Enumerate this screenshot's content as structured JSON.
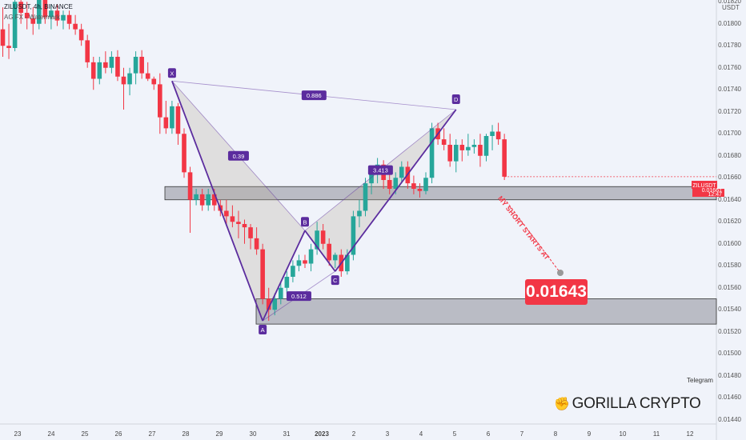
{
  "header": {
    "symbol": "ZILUSDT, 4h, BINANCE",
    "indicator": "AG FX - Watermark"
  },
  "price_axis": {
    "unit": "USDT",
    "labels": [
      "0.01820",
      "0.01800",
      "0.01780",
      "0.01760",
      "0.01740",
      "0.01720",
      "0.01700",
      "0.01680",
      "0.01660",
      "0.01640",
      "0.01620",
      "0.01600",
      "0.01580",
      "0.01560",
      "0.01540",
      "0.01520",
      "0.01500",
      "0.01480",
      "0.01460",
      "0.01440"
    ]
  },
  "price_badge": {
    "symbol": "ZILUSDT",
    "price": "0.01661",
    "countdown": "12:47"
  },
  "colors": {
    "up": "#26a69a",
    "down": "#f23645",
    "pattern": "#5b2c9e",
    "zone": "#9598a1",
    "background": "#f0f3fa"
  },
  "chart_data": {
    "type": "candlestick",
    "title": "ZILUSDT, 4h, BINANCE",
    "x_tick_labels": [
      "23",
      "24",
      "25",
      "26",
      "27",
      "28",
      "29",
      "30",
      "31",
      "2023",
      "2",
      "3",
      "4",
      "5",
      "6",
      "7",
      "8",
      "9",
      "10",
      "11",
      "12"
    ],
    "ylim": [
      0.0143,
      0.0183
    ],
    "candles_ohlc": [
      [
        0.01795,
        0.01815,
        0.0177,
        0.0178
      ],
      [
        0.0178,
        0.018,
        0.01768,
        0.01778
      ],
      [
        0.01778,
        0.0183,
        0.01775,
        0.0182
      ],
      [
        0.0182,
        0.01828,
        0.018,
        0.0181
      ],
      [
        0.0181,
        0.0182,
        0.01795,
        0.01805
      ],
      [
        0.01805,
        0.01815,
        0.0179,
        0.018
      ],
      [
        0.018,
        0.0183,
        0.01795,
        0.01822
      ],
      [
        0.01822,
        0.01826,
        0.018,
        0.01806
      ],
      [
        0.01806,
        0.01818,
        0.01795,
        0.01812
      ],
      [
        0.01812,
        0.01818,
        0.01798,
        0.01803
      ],
      [
        0.01803,
        0.01812,
        0.01795,
        0.01808
      ],
      [
        0.01808,
        0.01812,
        0.01795,
        0.018
      ],
      [
        0.018,
        0.01808,
        0.0179,
        0.01795
      ],
      [
        0.01795,
        0.018,
        0.0178,
        0.01785
      ],
      [
        0.01785,
        0.0179,
        0.0176,
        0.01765
      ],
      [
        0.01765,
        0.0177,
        0.0174,
        0.0175
      ],
      [
        0.0175,
        0.0177,
        0.01745,
        0.01765
      ],
      [
        0.01765,
        0.01775,
        0.01755,
        0.0176
      ],
      [
        0.0176,
        0.01775,
        0.01755,
        0.0177
      ],
      [
        0.0177,
        0.01776,
        0.01748,
        0.01752
      ],
      [
        0.01752,
        0.0176,
        0.01722,
        0.01745
      ],
      [
        0.01745,
        0.0176,
        0.01735,
        0.01755
      ],
      [
        0.01755,
        0.01775,
        0.01745,
        0.0177
      ],
      [
        0.0177,
        0.01776,
        0.0175,
        0.01755
      ],
      [
        0.01755,
        0.01765,
        0.01748,
        0.0175
      ],
      [
        0.0175,
        0.01752,
        0.0174,
        0.01745
      ],
      [
        0.01745,
        0.01755,
        0.017,
        0.01715
      ],
      [
        0.01715,
        0.0173,
        0.017,
        0.01705
      ],
      [
        0.01705,
        0.0173,
        0.017,
        0.01725
      ],
      [
        0.01725,
        0.01728,
        0.0169,
        0.017
      ],
      [
        0.017,
        0.01705,
        0.0166,
        0.01665
      ],
      [
        0.01665,
        0.0167,
        0.0161,
        0.0164
      ],
      [
        0.0164,
        0.0165,
        0.01635,
        0.01645
      ],
      [
        0.01645,
        0.0165,
        0.0163,
        0.01635
      ],
      [
        0.01635,
        0.0165,
        0.0163,
        0.01645
      ],
      [
        0.01645,
        0.0165,
        0.0163,
        0.01635
      ],
      [
        0.01635,
        0.0164,
        0.01625,
        0.0163
      ],
      [
        0.0163,
        0.0164,
        0.01618,
        0.01625
      ],
      [
        0.01625,
        0.01635,
        0.01615,
        0.0162
      ],
      [
        0.0162,
        0.0163,
        0.01605,
        0.01618
      ],
      [
        0.01618,
        0.01622,
        0.016,
        0.01615
      ],
      [
        0.01615,
        0.01618,
        0.01595,
        0.01605
      ],
      [
        0.01605,
        0.01615,
        0.0159,
        0.01595
      ],
      [
        0.01595,
        0.016,
        0.01545,
        0.0155
      ],
      [
        0.0155,
        0.0156,
        0.0153,
        0.0154
      ],
      [
        0.0154,
        0.01555,
        0.01535,
        0.0155
      ],
      [
        0.0155,
        0.01565,
        0.01545,
        0.0156
      ],
      [
        0.0156,
        0.01575,
        0.01555,
        0.0157
      ],
      [
        0.0157,
        0.01585,
        0.01565,
        0.0158
      ],
      [
        0.0158,
        0.0159,
        0.01575,
        0.01585
      ],
      [
        0.01585,
        0.0159,
        0.01578,
        0.01582
      ],
      [
        0.01582,
        0.016,
        0.01575,
        0.01595
      ],
      [
        0.01595,
        0.0162,
        0.0159,
        0.01612
      ],
      [
        0.01612,
        0.01618,
        0.01595,
        0.016
      ],
      [
        0.016,
        0.01605,
        0.0158,
        0.01585
      ],
      [
        0.01585,
        0.01592,
        0.01578,
        0.0159
      ],
      [
        0.0159,
        0.01595,
        0.0157,
        0.01575
      ],
      [
        0.01575,
        0.01595,
        0.01572,
        0.0159
      ],
      [
        0.0159,
        0.0163,
        0.01585,
        0.01625
      ],
      [
        0.01625,
        0.0164,
        0.01615,
        0.0163
      ],
      [
        0.0163,
        0.0166,
        0.01625,
        0.01655
      ],
      [
        0.01655,
        0.0167,
        0.01645,
        0.01665
      ],
      [
        0.01665,
        0.01678,
        0.01655,
        0.01672
      ],
      [
        0.01672,
        0.01676,
        0.0165,
        0.01658
      ],
      [
        0.01658,
        0.0167,
        0.01645,
        0.0165
      ],
      [
        0.0165,
        0.01665,
        0.01645,
        0.0166
      ],
      [
        0.0166,
        0.01675,
        0.01655,
        0.0167
      ],
      [
        0.0167,
        0.01675,
        0.0165,
        0.01655
      ],
      [
        0.01655,
        0.01662,
        0.01645,
        0.0165
      ],
      [
        0.0165,
        0.01655,
        0.01642,
        0.01648
      ],
      [
        0.01648,
        0.01665,
        0.01645,
        0.0166
      ],
      [
        0.0166,
        0.0171,
        0.01655,
        0.01705
      ],
      [
        0.01705,
        0.0171,
        0.0169,
        0.01695
      ],
      [
        0.01695,
        0.01705,
        0.01685,
        0.0169
      ],
      [
        0.0169,
        0.017,
        0.0167,
        0.01675
      ],
      [
        0.01675,
        0.01695,
        0.01665,
        0.0169
      ],
      [
        0.0169,
        0.01695,
        0.01675,
        0.01685
      ],
      [
        0.01685,
        0.017,
        0.0168,
        0.01688
      ],
      [
        0.01688,
        0.01695,
        0.01682,
        0.0169
      ],
      [
        0.0169,
        0.017,
        0.0167,
        0.0168
      ],
      [
        0.0168,
        0.017,
        0.01675,
        0.01698
      ],
      [
        0.01698,
        0.01708,
        0.01685,
        0.01702
      ],
      [
        0.01702,
        0.0171,
        0.0169,
        0.01695
      ],
      [
        0.01695,
        0.017,
        0.01658,
        0.01661
      ]
    ],
    "harmonic_pattern": {
      "points": [
        {
          "label": "X",
          "price": 0.01748
        },
        {
          "label": "A",
          "price": 0.0153
        },
        {
          "label": "B",
          "price": 0.01612
        },
        {
          "label": "C",
          "price": 0.01575
        },
        {
          "label": "D",
          "price": 0.01722
        }
      ],
      "ratios": [
        "0.886",
        "0.39",
        "0.512",
        "3.413"
      ]
    },
    "zones": [
      {
        "top": 0.01652,
        "bottom": 0.0164
      },
      {
        "top": 0.0155,
        "bottom": 0.01527
      }
    ]
  },
  "annotation": {
    "arrow_text": "MY SHORT STARTS AT",
    "target_price": "0.01643"
  },
  "footer": {
    "telegram": "Telegram",
    "brand": "GORILLA CRYPTO"
  }
}
